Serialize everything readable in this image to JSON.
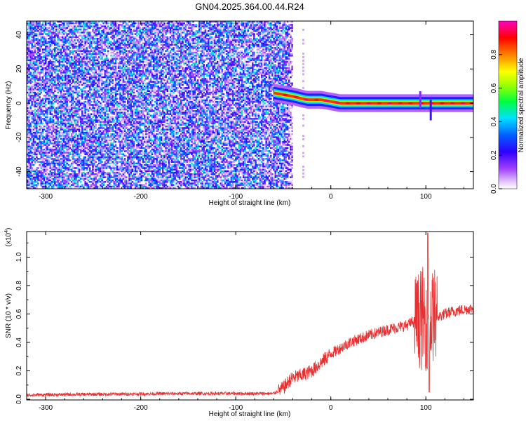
{
  "title": "GN04.2025.364.00.44.R24",
  "chart_data": [
    {
      "type": "heatmap",
      "title": "GN04.2025.364.00.44.R24",
      "xlabel": "Height of straight line (km)",
      "ylabel": "Frequency (Hz)",
      "xlim": [
        -320,
        150
      ],
      "ylim": [
        -50,
        48
      ],
      "xticks": [
        -300,
        -200,
        -100,
        0,
        100
      ],
      "yticks": [
        -40,
        -20,
        0,
        20,
        40
      ],
      "colorbar": {
        "label": "Normalized spectral amplitude",
        "range": [
          0,
          1
        ],
        "ticks": [
          "0.0",
          "0.2",
          "0.4",
          "0.6",
          "0.8"
        ],
        "colormap": [
          "#ffffff",
          "#d8b8ff",
          "#8000ff",
          "#0000ff",
          "#00c8ff",
          "#00ff00",
          "#ffff00",
          "#ff8000",
          "#ff0000",
          "#ff00a0"
        ]
      },
      "regions": {
        "noise_region_x": [
          -320,
          -40
        ],
        "noise_amplitude": [
          0.0,
          0.35
        ],
        "signal_x": [
          -60,
          150
        ],
        "signal_frequency_hz": [
          [
            -60,
            6
          ],
          [
            -40,
            4
          ],
          [
            -25,
            2
          ],
          [
            -10,
            2
          ],
          [
            0,
            1
          ],
          [
            10,
            0
          ],
          [
            150,
            0
          ]
        ],
        "signal_amplitude": 0.95
      }
    },
    {
      "type": "line",
      "xlabel": "Height of straight line (km)",
      "ylabel": "SNR (10 * v/v)",
      "scale_label": "(x10",
      "scale_exponent": "4",
      "scale_suffix": ")",
      "xlim": [
        -320,
        150
      ],
      "ylim": [
        -0.005,
        1.18
      ],
      "xticks": [
        -300,
        -200,
        -100,
        0,
        100
      ],
      "yticks": [
        "0.0",
        "0.2",
        "0.4",
        "0.6",
        "0.8",
        "1.0"
      ],
      "color": "#e83030",
      "series": [
        {
          "x": [
            -320,
            -250,
            -150,
            -100,
            -60,
            -50,
            -45,
            -40,
            -30,
            -20,
            -10,
            0,
            20,
            40,
            60,
            80,
            85,
            90,
            95,
            100,
            105,
            110,
            120,
            130,
            140,
            150
          ],
          "values": [
            0.03,
            0.035,
            0.04,
            0.04,
            0.04,
            0.08,
            0.12,
            0.15,
            0.17,
            0.2,
            0.26,
            0.32,
            0.4,
            0.45,
            0.49,
            0.52,
            0.54,
            0.55,
            0.56,
            0.56,
            0.57,
            0.57,
            0.6,
            0.62,
            0.63,
            0.64
          ]
        }
      ]
    }
  ]
}
